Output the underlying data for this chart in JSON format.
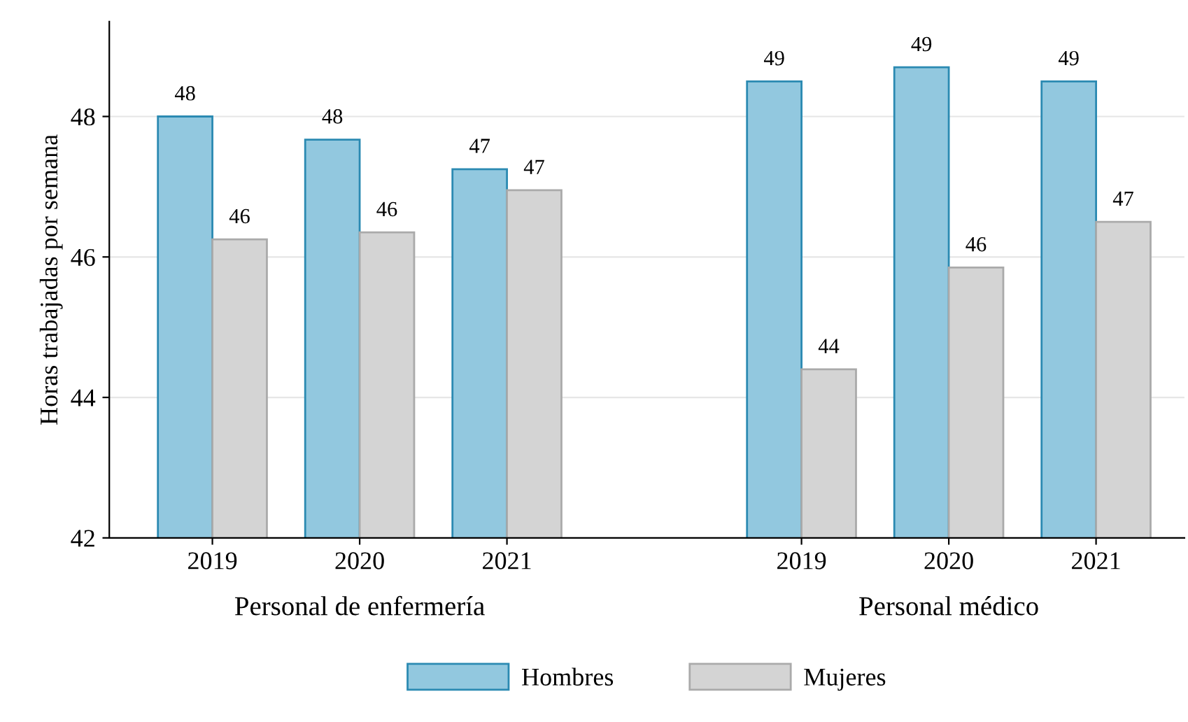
{
  "chart_data": {
    "type": "bar",
    "ylabel": "Horas trabajadas por semana",
    "categories": [
      "2019",
      "2020",
      "2021",
      null,
      "2019",
      "2020",
      "2021"
    ],
    "series": [
      {
        "name": "Hombres",
        "color": "#92c8df",
        "values": [
          48.0,
          47.67,
          47.25,
          null,
          48.5,
          48.7,
          48.5
        ],
        "value_labels": [
          "48",
          "48",
          "47",
          null,
          "49",
          "49",
          "49"
        ]
      },
      {
        "name": "Mujeres",
        "color": "#d4d4d4",
        "values": [
          46.25,
          46.35,
          46.95,
          null,
          44.4,
          45.85,
          46.5
        ],
        "value_labels": [
          "46",
          "46",
          "47",
          null,
          "44",
          "46",
          "47"
        ]
      }
    ],
    "ylim": [
      42,
      49.35
    ],
    "yticks": [
      42,
      44,
      46,
      48
    ],
    "grid": "y",
    "legend": "bottom",
    "annotations": [
      "Personal de enfermería",
      "Personal médico"
    ]
  }
}
